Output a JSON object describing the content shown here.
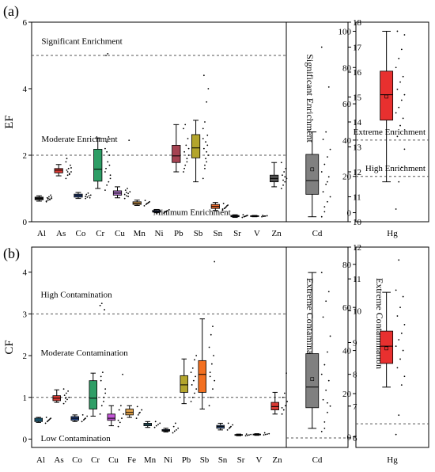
{
  "figure_labels": {
    "a": "(a)",
    "b": "(b)"
  },
  "colors": {
    "axis": "#000000",
    "whisker": "#000000",
    "median": "#000000",
    "threshold": "#555555"
  },
  "chart_data": [
    {
      "panel": "a-main",
      "type": "box",
      "ylabel": "EF",
      "ylim": [
        0,
        6
      ],
      "yticks": [
        0,
        2,
        4,
        6
      ],
      "thresholds": [
        2,
        5
      ],
      "annotations": [
        {
          "label": "Significant Enrichment",
          "x": 0.5,
          "y": 5.35
        },
        {
          "label": "Moderate Enrichment",
          "x": 0.5,
          "y": 2.4
        },
        {
          "label": "Minimum Enrichment",
          "x": 6.2,
          "y": 0.2
        }
      ],
      "categories": [
        "Al",
        "As",
        "Co",
        "Cr",
        "Cu",
        "Mn",
        "Ni",
        "Pb",
        "Sb",
        "Sn",
        "Sr",
        "V",
        "Zn"
      ],
      "boxes": [
        {
          "min": 0.62,
          "q1": 0.66,
          "median": 0.7,
          "q3": 0.74,
          "max": 0.78,
          "color": "#1a1a1a",
          "points": [
            0.6,
            0.65,
            0.68,
            0.7,
            0.72,
            0.75,
            0.8,
            0.62,
            0.7,
            0.66,
            0.74
          ]
        },
        {
          "min": 1.38,
          "q1": 1.47,
          "median": 1.55,
          "q3": 1.6,
          "max": 1.72,
          "color": "#d83a34",
          "points": [
            1.3,
            1.4,
            1.45,
            1.5,
            1.55,
            1.6,
            1.7,
            1.8,
            1.5,
            1.42,
            1.62,
            1.9
          ]
        },
        {
          "min": 0.7,
          "q1": 0.74,
          "median": 0.79,
          "q3": 0.83,
          "max": 0.88,
          "color": "#2b4a8c",
          "points": [
            0.7,
            0.74,
            0.78,
            0.8,
            0.82,
            0.86,
            0.72,
            0.76
          ]
        },
        {
          "min": 1.0,
          "q1": 1.22,
          "median": 1.58,
          "q3": 2.18,
          "max": 2.52,
          "color": "#2e9e66",
          "points": [
            0.95,
            1.1,
            1.2,
            1.4,
            1.6,
            1.8,
            2.0,
            2.2,
            2.4,
            2.55,
            1.3,
            5.0,
            5.05,
            1.7,
            1.5,
            2.1
          ]
        },
        {
          "min": 0.72,
          "q1": 0.8,
          "median": 0.86,
          "q3": 0.93,
          "max": 1.05,
          "color": "#a66fc0",
          "points": [
            0.7,
            0.78,
            0.85,
            0.9,
            0.95,
            1.0,
            2.45,
            0.82,
            0.88,
            0.76
          ]
        },
        {
          "min": 0.49,
          "q1": 0.52,
          "median": 0.56,
          "q3": 0.6,
          "max": 0.65,
          "color": "#e0a24c",
          "points": [
            0.48,
            0.52,
            0.56,
            0.6,
            0.64,
            0.55,
            0.58
          ]
        },
        {
          "min": 0.27,
          "q1": 0.29,
          "median": 0.31,
          "q3": 0.34,
          "max": 0.37,
          "color": "#2d4f9a",
          "points": [
            0.26,
            0.3,
            0.33,
            0.36,
            0.29,
            0.32
          ]
        },
        {
          "min": 1.5,
          "q1": 1.78,
          "median": 1.98,
          "q3": 2.3,
          "max": 2.92,
          "color": "#a54352",
          "points": [
            1.5,
            1.7,
            1.9,
            2.0,
            2.1,
            2.3,
            2.5,
            2.8,
            2.92,
            1.8,
            2.2,
            1.6
          ]
        },
        {
          "min": 1.2,
          "q1": 1.92,
          "median": 2.22,
          "q3": 2.62,
          "max": 3.05,
          "color": "#b3a52c",
          "points": [
            1.3,
            1.6,
            1.8,
            2.0,
            2.2,
            2.4,
            2.6,
            2.8,
            3.0,
            3.6,
            4.0,
            4.4,
            1.9,
            2.3,
            2.5,
            1.7,
            2.1
          ]
        },
        {
          "min": 0.34,
          "q1": 0.4,
          "median": 0.46,
          "q3": 0.52,
          "max": 0.58,
          "color": "#e86a2c",
          "points": [
            0.35,
            0.4,
            0.45,
            0.5,
            0.55,
            0.42,
            0.48,
            0.38
          ]
        },
        {
          "min": 0.13,
          "q1": 0.15,
          "median": 0.17,
          "q3": 0.19,
          "max": 0.21,
          "color": "#3a4d7e",
          "points": [
            0.13,
            0.15,
            0.17,
            0.19,
            0.21,
            0.16,
            0.18
          ]
        },
        {
          "min": 0.15,
          "q1": 0.16,
          "median": 0.17,
          "q3": 0.18,
          "max": 0.19,
          "color": "#3b4d95",
          "points": [
            0.15,
            0.16,
            0.17,
            0.18,
            0.19,
            0.17
          ]
        },
        {
          "min": 1.05,
          "q1": 1.2,
          "median": 1.3,
          "q3": 1.4,
          "max": 1.78,
          "color": "#505050",
          "points": [
            1.0,
            1.1,
            1.2,
            1.3,
            1.4,
            1.5,
            1.6,
            1.78,
            1.25,
            1.35
          ]
        }
      ]
    },
    {
      "panel": "a-cd",
      "type": "box",
      "ylim": [
        10,
        18
      ],
      "yticks": [
        10,
        11,
        12,
        13,
        14,
        15,
        16,
        17,
        18
      ],
      "annotations": [
        {
          "label": "Significant Enrichment",
          "vertical": true
        }
      ],
      "categories": [
        "Cd"
      ],
      "boxes": [
        {
          "min": 10.2,
          "q1": 11.1,
          "median": 11.65,
          "q3": 12.7,
          "max": 13.6,
          "mean": 12.1,
          "color": "#808080",
          "points": [
            10.2,
            10.4,
            10.8,
            11.0,
            11.2,
            11.5,
            11.8,
            12.0,
            12.3,
            12.6,
            12.9,
            13.3,
            13.6,
            15.4,
            17.0,
            10.6,
            11.6
          ]
        }
      ]
    },
    {
      "panel": "a-hg",
      "type": "box",
      "ylim": [
        -5,
        105
      ],
      "yticks": [
        0,
        20,
        40,
        60,
        80,
        100
      ],
      "thresholds": [
        20,
        40
      ],
      "annotations": [
        {
          "label": "Extreme Enrichment",
          "y": 43
        },
        {
          "label": "High Enrichment",
          "y": 23
        }
      ],
      "categories": [
        "Hg"
      ],
      "boxes": [
        {
          "min": 17,
          "q1": 51,
          "median": 65,
          "q3": 78,
          "max": 100,
          "mean": 64,
          "color": "#e8302f",
          "points": [
            2,
            17,
            25,
            35,
            42,
            48,
            52,
            55,
            58,
            62,
            65,
            68,
            72,
            75,
            80,
            85,
            90,
            98,
            100
          ]
        }
      ]
    },
    {
      "panel": "b-main",
      "type": "box",
      "ylabel": "CF",
      "ylim": [
        -0.2,
        4.6
      ],
      "yticks": [
        0,
        1,
        2,
        3,
        4
      ],
      "thresholds": [
        1,
        3
      ],
      "annotations": [
        {
          "label": "High Contamination",
          "x": 0.5,
          "y": 3.4
        },
        {
          "label": "Moderate Contamination",
          "x": 0.5,
          "y": 2.0
        },
        {
          "label": "Low Contamination",
          "x": 0.5,
          "y": -0.05
        }
      ],
      "categories": [
        "Al",
        "As",
        "Co",
        "Cr",
        "Cu",
        "Fe",
        "Mn",
        "Ni",
        "Pb",
        "Sb",
        "Sn",
        "Sr",
        "V",
        "Zn"
      ],
      "boxes": [
        {
          "min": 0.4,
          "q1": 0.42,
          "median": 0.46,
          "q3": 0.5,
          "max": 0.52,
          "color": "#2a7fa3",
          "points": [
            0.38,
            0.42,
            0.46,
            0.5,
            0.52,
            0.44,
            0.48
          ]
        },
        {
          "min": 0.88,
          "q1": 0.92,
          "median": 0.98,
          "q3": 1.04,
          "max": 1.18,
          "color": "#d83a34",
          "points": [
            0.85,
            0.9,
            0.95,
            1.0,
            1.05,
            1.1,
            1.15,
            1.2,
            0.98
          ]
        },
        {
          "min": 0.42,
          "q1": 0.45,
          "median": 0.5,
          "q3": 0.54,
          "max": 0.58,
          "color": "#2b4a8c",
          "points": [
            0.42,
            0.46,
            0.5,
            0.55,
            0.58,
            0.48
          ]
        },
        {
          "min": 0.55,
          "q1": 0.72,
          "median": 0.98,
          "q3": 1.4,
          "max": 1.58,
          "color": "#2e9e66",
          "points": [
            0.6,
            0.8,
            1.0,
            1.2,
            1.4,
            1.6,
            3.1,
            3.2,
            3.25,
            0.9,
            1.1,
            1.5
          ]
        },
        {
          "min": 0.32,
          "q1": 0.45,
          "median": 0.5,
          "q3": 0.6,
          "max": 0.8,
          "color": "#c356d6",
          "points": [
            0.3,
            0.4,
            0.5,
            0.6,
            0.7,
            0.8,
            1.55,
            0.45
          ]
        },
        {
          "min": 0.52,
          "q1": 0.58,
          "median": 0.64,
          "q3": 0.72,
          "max": 0.8,
          "color": "#e0a24c",
          "points": [
            0.5,
            0.58,
            0.64,
            0.7,
            0.78,
            0.62
          ]
        },
        {
          "min": 0.28,
          "q1": 0.32,
          "median": 0.35,
          "q3": 0.38,
          "max": 0.42,
          "color": "#3f7f8f",
          "points": [
            0.28,
            0.32,
            0.35,
            0.38,
            0.42
          ]
        },
        {
          "min": 0.17,
          "q1": 0.19,
          "median": 0.21,
          "q3": 0.23,
          "max": 0.26,
          "color": "#3a4d7e",
          "points": [
            0.15,
            0.19,
            0.22,
            0.26,
            0.3,
            0.38
          ]
        },
        {
          "min": 0.85,
          "q1": 1.12,
          "median": 1.3,
          "q3": 1.52,
          "max": 1.92,
          "color": "#b3a52c",
          "points": [
            0.9,
            1.0,
            1.1,
            1.2,
            1.3,
            1.4,
            1.5,
            1.6,
            1.7,
            1.9,
            2.0
          ]
        },
        {
          "min": 0.72,
          "q1": 1.12,
          "median": 1.55,
          "q3": 1.88,
          "max": 2.88,
          "color": "#f37021",
          "points": [
            0.8,
            1.0,
            1.2,
            1.4,
            1.6,
            1.8,
            2.0,
            2.2,
            2.5,
            2.7,
            4.25,
            1.5
          ]
        },
        {
          "min": 0.22,
          "q1": 0.26,
          "median": 0.3,
          "q3": 0.33,
          "max": 0.38,
          "color": "#3b5a8a",
          "points": [
            0.22,
            0.26,
            0.3,
            0.34,
            0.38,
            0.28
          ]
        },
        {
          "min": 0.08,
          "q1": 0.09,
          "median": 0.1,
          "q3": 0.11,
          "max": 0.12,
          "color": "#3a4d7e",
          "points": [
            0.08,
            0.09,
            0.1,
            0.11,
            0.12
          ]
        },
        {
          "min": 0.09,
          "q1": 0.1,
          "median": 0.11,
          "q3": 0.12,
          "max": 0.13,
          "color": "#3b4d95",
          "points": [
            0.1,
            0.11,
            0.12,
            0.13,
            0.15
          ]
        },
        {
          "min": 0.6,
          "q1": 0.7,
          "median": 0.78,
          "q3": 0.88,
          "max": 1.12,
          "color": "#d83a34",
          "points": [
            0.6,
            0.7,
            0.8,
            0.9,
            1.0,
            1.1,
            1.58,
            0.75
          ]
        }
      ]
    },
    {
      "panel": "b-cd",
      "type": "box",
      "ylim": [
        5.7,
        12
      ],
      "yticks": [
        6,
        7,
        8,
        9,
        10,
        11,
        12
      ],
      "thresholds": [
        6
      ],
      "annotations": [
        {
          "label": "Extreme Contamination",
          "vertical": true
        }
      ],
      "categories": [
        "Cd"
      ],
      "boxes": [
        {
          "min": 6.3,
          "q1": 6.95,
          "median": 7.6,
          "q3": 8.65,
          "max": 11.2,
          "mean": 7.85,
          "color": "#808080",
          "points": [
            6.2,
            6.5,
            6.8,
            7.0,
            7.2,
            7.5,
            7.8,
            8.0,
            8.3,
            8.7,
            9.2,
            9.8,
            10.3,
            10.6,
            11.2,
            6.3,
            7.1
          ]
        }
      ]
    },
    {
      "panel": "b-hg",
      "type": "box",
      "ylim": [
        -5,
        88
      ],
      "yticks": [
        0,
        20,
        40,
        60,
        80
      ],
      "thresholds": [
        6
      ],
      "annotations": [
        {
          "label": "Extreme Contamination",
          "vertical": true
        }
      ],
      "categories": [
        "Hg"
      ],
      "boxes": [
        {
          "min": 23,
          "q1": 34,
          "median": 42,
          "q3": 49,
          "max": 67,
          "mean": 41,
          "color": "#e8302f",
          "points": [
            1,
            10,
            24,
            28,
            32,
            36,
            40,
            42,
            45,
            48,
            52,
            56,
            60,
            65,
            68,
            82
          ]
        }
      ]
    }
  ]
}
